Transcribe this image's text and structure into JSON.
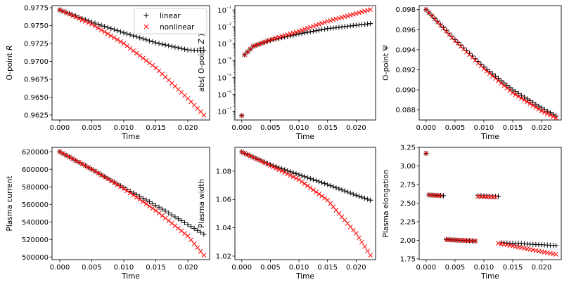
{
  "chart_data": [
    {
      "type": "scatter",
      "xlabel": "Time",
      "ylabel": "O-point R",
      "ylabel_italic": "R",
      "ylim": [
        0.9618,
        0.9778
      ],
      "xlim": [
        -0.0012,
        0.0234
      ],
      "yticks": [
        0.9625,
        0.965,
        0.9675,
        0.97,
        0.9725,
        0.975,
        0.9775
      ],
      "ytick_labels": [
        "0.9625",
        "0.9650",
        "0.9675",
        "0.9700",
        "0.9725",
        "0.9750",
        "0.9775"
      ],
      "legend": {
        "placement": "upper-right",
        "entries": [
          "linear",
          "nonlinear"
        ]
      },
      "series": [
        {
          "name": "linear",
          "marker": "+",
          "color": "#000000",
          "shape": "curve",
          "points": [
            [
              0.0,
              0.9772
            ],
            [
              0.005,
              0.9755
            ],
            [
              0.01,
              0.974
            ],
            [
              0.015,
              0.9726
            ],
            [
              0.02,
              0.9716
            ],
            [
              0.0225,
              0.9715
            ]
          ]
        },
        {
          "name": "nonlinear",
          "marker": "x",
          "color": "#ff0000",
          "shape": "curve",
          "points": [
            [
              0.0,
              0.9772
            ],
            [
              0.005,
              0.9752
            ],
            [
              0.01,
              0.9725
            ],
            [
              0.015,
              0.9691
            ],
            [
              0.02,
              0.9648
            ],
            [
              0.0225,
              0.9625
            ]
          ]
        }
      ]
    },
    {
      "type": "scatter",
      "xlabel": "Time",
      "ylabel": "abs( O-point Z )",
      "ylabel_italic": "Z",
      "yscale": "log",
      "ylim": [
        3e-08,
        0.18
      ],
      "xlim": [
        -0.0012,
        0.0234
      ],
      "yticks": [
        1e-07,
        1e-06,
        1e-05,
        0.0001,
        0.001,
        0.01,
        0.1
      ],
      "ytick_labels": [
        "10⁻⁷",
        "10⁻⁶",
        "10⁻⁵",
        "10⁻⁴",
        "10⁻³",
        "10⁻²",
        "10⁻¹"
      ],
      "series": [
        {
          "name": "linear",
          "marker": "+",
          "color": "#000000",
          "shape": "curve",
          "start_point": [
            0.0,
            5.5e-08
          ],
          "points": [
            [
              0.0005,
              0.00022
            ],
            [
              0.002,
              0.0007
            ],
            [
              0.005,
              0.0016
            ],
            [
              0.01,
              0.0038
            ],
            [
              0.015,
              0.0078
            ],
            [
              0.0225,
              0.0155
            ]
          ]
        },
        {
          "name": "nonlinear",
          "marker": "x",
          "color": "#ff0000",
          "shape": "curve",
          "start_point": [
            0.0,
            5.5e-08
          ],
          "points": [
            [
              0.0005,
              0.00022
            ],
            [
              0.002,
              0.0007
            ],
            [
              0.005,
              0.0017
            ],
            [
              0.01,
              0.0055
            ],
            [
              0.015,
              0.021
            ],
            [
              0.0225,
              0.105
            ]
          ]
        }
      ]
    },
    {
      "type": "scatter",
      "xlabel": "Time",
      "ylabel": "O-point Ψ",
      "ylim": [
        0.087,
        0.0984
      ],
      "xlim": [
        -0.0012,
        0.0234
      ],
      "yticks": [
        0.088,
        0.09,
        0.092,
        0.094,
        0.096,
        0.098
      ],
      "ytick_labels": [
        "0.088",
        "0.090",
        "0.092",
        "0.094",
        "0.096",
        "0.098"
      ],
      "series": [
        {
          "name": "linear",
          "marker": "+",
          "color": "#000000",
          "shape": "curve",
          "points": [
            [
              0.0,
              0.098
            ],
            [
              0.005,
              0.095
            ],
            [
              0.01,
              0.0923
            ],
            [
              0.015,
              0.09
            ],
            [
              0.02,
              0.0882
            ],
            [
              0.0225,
              0.0874
            ]
          ]
        },
        {
          "name": "nonlinear",
          "marker": "x",
          "color": "#ff0000",
          "shape": "curve",
          "points": [
            [
              0.0,
              0.098
            ],
            [
              0.005,
              0.0949
            ],
            [
              0.01,
              0.0921
            ],
            [
              0.015,
              0.0897
            ],
            [
              0.02,
              0.0879
            ],
            [
              0.0225,
              0.0872
            ]
          ]
        }
      ]
    },
    {
      "type": "scatter",
      "xlabel": "Time",
      "ylabel": "Plasma current",
      "ylim": [
        497000,
        625000
      ],
      "xlim": [
        -0.0012,
        0.0234
      ],
      "yticks": [
        500000,
        520000,
        540000,
        560000,
        580000,
        600000,
        620000
      ],
      "ytick_labels": [
        "500000",
        "520000",
        "540000",
        "560000",
        "580000",
        "600000",
        "620000"
      ],
      "series": [
        {
          "name": "linear",
          "marker": "+",
          "color": "#000000",
          "shape": "curve",
          "points": [
            [
              0.0,
              620000
            ],
            [
              0.005,
              600000
            ],
            [
              0.01,
              579000
            ],
            [
              0.015,
              559000
            ],
            [
              0.02,
              537000
            ],
            [
              0.0225,
              526000
            ]
          ]
        },
        {
          "name": "nonlinear",
          "marker": "x",
          "color": "#ff0000",
          "shape": "curve",
          "points": [
            [
              0.0,
              620000
            ],
            [
              0.005,
              600000
            ],
            [
              0.01,
              578000
            ],
            [
              0.015,
              553000
            ],
            [
              0.02,
              524000
            ],
            [
              0.0225,
              502000
            ]
          ]
        }
      ]
    },
    {
      "type": "scatter",
      "xlabel": "Time",
      "ylabel": "Plasma width",
      "ylim": [
        1.0175,
        1.0968
      ],
      "xlim": [
        -0.0012,
        0.0234
      ],
      "yticks": [
        1.02,
        1.04,
        1.06,
        1.08
      ],
      "ytick_labels": [
        "1.02",
        "1.04",
        "1.06",
        "1.08"
      ],
      "series": [
        {
          "name": "linear",
          "marker": "+",
          "color": "#000000",
          "shape": "curve",
          "points": [
            [
              0.0,
              1.0935
            ],
            [
              0.005,
              1.0845
            ],
            [
              0.01,
              1.0775
            ],
            [
              0.015,
              1.0705
            ],
            [
              0.02,
              1.063
            ],
            [
              0.0225,
              1.0595
            ]
          ]
        },
        {
          "name": "nonlinear",
          "marker": "x",
          "color": "#ff0000",
          "shape": "curve",
          "points": [
            [
              0.0,
              1.0935
            ],
            [
              0.005,
              1.084
            ],
            [
              0.01,
              1.074
            ],
            [
              0.015,
              1.0595
            ],
            [
              0.02,
              1.036
            ],
            [
              0.0225,
              1.0205
            ]
          ]
        }
      ]
    },
    {
      "type": "scatter",
      "xlabel": "Time",
      "ylabel": "Plasma elongation",
      "ylim": [
        1.74,
        3.25
      ],
      "xlim": [
        -0.0012,
        0.0234
      ],
      "yticks": [
        1.75,
        2.0,
        2.25,
        2.5,
        2.75,
        3.0,
        3.25
      ],
      "ytick_labels": [
        "1.75",
        "2.00",
        "2.25",
        "2.50",
        "2.75",
        "3.00",
        "3.25"
      ],
      "series": [
        {
          "name": "linear",
          "marker": "+",
          "color": "#000000",
          "shape": "segments",
          "segments": [
            {
              "x0": 0.0,
              "x1": 0.0,
              "y0": 3.17,
              "y1": 3.17
            },
            {
              "x0": 0.0005,
              "x1": 0.003,
              "y0": 2.61,
              "y1": 2.6
            },
            {
              "x0": 0.0035,
              "x1": 0.0085,
              "y0": 2.01,
              "y1": 1.99
            },
            {
              "x0": 0.009,
              "x1": 0.0125,
              "y0": 2.6,
              "y1": 2.59
            },
            {
              "x0": 0.0125,
              "x1": 0.0225,
              "y0": 1.97,
              "y1": 1.93
            }
          ]
        },
        {
          "name": "nonlinear",
          "marker": "x",
          "color": "#ff0000",
          "shape": "segments",
          "segments": [
            {
              "x0": 0.0,
              "x1": 0.0,
              "y0": 3.17,
              "y1": 3.17
            },
            {
              "x0": 0.0005,
              "x1": 0.0025,
              "y0": 2.61,
              "y1": 2.6
            },
            {
              "x0": 0.0035,
              "x1": 0.0085,
              "y0": 2.01,
              "y1": 1.99
            },
            {
              "x0": 0.009,
              "x1": 0.012,
              "y0": 2.59,
              "y1": 2.58
            },
            {
              "x0": 0.0125,
              "x1": 0.0225,
              "y0": 1.96,
              "y1": 1.81
            }
          ]
        }
      ]
    }
  ],
  "x_axis": {
    "ticks": [
      0.0,
      0.005,
      0.01,
      0.015,
      0.02
    ],
    "tick_labels": [
      "0.000",
      "0.005",
      "0.010",
      "0.015",
      "0.020"
    ],
    "n_samples": 46,
    "t_max": 0.0225
  },
  "colors": {
    "linear": "#000000",
    "nonlinear": "#ff0000"
  }
}
